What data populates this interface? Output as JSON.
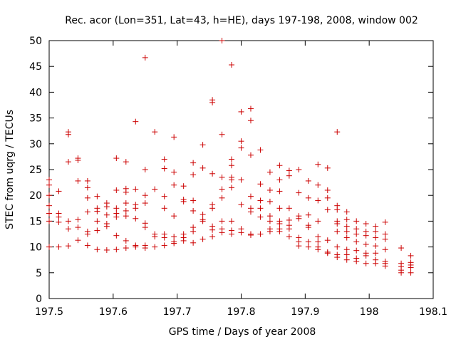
{
  "chart_data": {
    "type": "scatter",
    "title": "Rec. acor (Lon=351, Lat=43, h=HE), days 197-198, 2008, window 002",
    "xlabel": "GPS time / Days of year 2008",
    "ylabel": "STEC from uqrg / TECUs",
    "xlim": [
      197.5,
      198.1
    ],
    "ylim": [
      0,
      50
    ],
    "xticks": [
      197.5,
      197.6,
      197.7,
      197.8,
      197.9,
      198,
      198.1
    ],
    "xtick_labels": [
      "197.5",
      "197.6",
      "197.7",
      "197.8",
      "197.9",
      "198",
      "198.1"
    ],
    "yticks": [
      0,
      5,
      10,
      15,
      20,
      25,
      30,
      35,
      40,
      45,
      50
    ],
    "ytick_labels": [
      "0",
      "5",
      "10",
      "15",
      "20",
      "25",
      "30",
      "35",
      "40",
      "45",
      "50"
    ],
    "grid": false,
    "marker": "+",
    "series": [
      {
        "color": "#cc0000",
        "points": [
          [
            197.5,
            23.0
          ],
          [
            197.5,
            22.0
          ],
          [
            197.5,
            20.0
          ],
          [
            197.5,
            18.0
          ],
          [
            197.5,
            16.5
          ],
          [
            197.5,
            15.0
          ],
          [
            197.5,
            10.0
          ],
          [
            197.515,
            20.8
          ],
          [
            197.515,
            16.5
          ],
          [
            197.515,
            15.8
          ],
          [
            197.515,
            14.8
          ],
          [
            197.515,
            10.0
          ],
          [
            197.53,
            32.3
          ],
          [
            197.53,
            31.8
          ],
          [
            197.53,
            26.5
          ],
          [
            197.53,
            15.0
          ],
          [
            197.53,
            13.5
          ],
          [
            197.53,
            10.2
          ],
          [
            197.545,
            27.2
          ],
          [
            197.545,
            26.8
          ],
          [
            197.545,
            22.8
          ],
          [
            197.545,
            15.3
          ],
          [
            197.545,
            13.8
          ],
          [
            197.545,
            11.3
          ],
          [
            197.56,
            22.8
          ],
          [
            197.56,
            21.5
          ],
          [
            197.56,
            19.5
          ],
          [
            197.56,
            16.8
          ],
          [
            197.56,
            13.0
          ],
          [
            197.56,
            12.5
          ],
          [
            197.56,
            10.3
          ],
          [
            197.575,
            19.8
          ],
          [
            197.575,
            17.5
          ],
          [
            197.575,
            16.9
          ],
          [
            197.575,
            15.0
          ],
          [
            197.575,
            13.2
          ],
          [
            197.575,
            9.5
          ],
          [
            197.59,
            18.5
          ],
          [
            197.59,
            17.8
          ],
          [
            197.59,
            16.2
          ],
          [
            197.59,
            14.5
          ],
          [
            197.59,
            14.0
          ],
          [
            197.59,
            9.4
          ],
          [
            197.605,
            27.2
          ],
          [
            197.605,
            21.0
          ],
          [
            197.605,
            17.5
          ],
          [
            197.605,
            16.5
          ],
          [
            197.605,
            15.8
          ],
          [
            197.605,
            12.2
          ],
          [
            197.605,
            9.5
          ],
          [
            197.62,
            26.5
          ],
          [
            197.62,
            21.3
          ],
          [
            197.62,
            20.6
          ],
          [
            197.62,
            18.5
          ],
          [
            197.62,
            17.0
          ],
          [
            197.62,
            16.0
          ],
          [
            197.62,
            11.2
          ],
          [
            197.62,
            9.8
          ],
          [
            197.635,
            34.3
          ],
          [
            197.635,
            21.2
          ],
          [
            197.635,
            18.2
          ],
          [
            197.635,
            17.5
          ],
          [
            197.635,
            15.5
          ],
          [
            197.635,
            10.3
          ],
          [
            197.635,
            10.0
          ],
          [
            197.65,
            46.7
          ],
          [
            197.65,
            25.0
          ],
          [
            197.65,
            20.0
          ],
          [
            197.65,
            18.5
          ],
          [
            197.65,
            14.6
          ],
          [
            197.65,
            13.8
          ],
          [
            197.65,
            10.3
          ],
          [
            197.65,
            9.8
          ],
          [
            197.665,
            32.3
          ],
          [
            197.665,
            21.2
          ],
          [
            197.665,
            12.5
          ],
          [
            197.665,
            12.0
          ],
          [
            197.665,
            10.0
          ],
          [
            197.68,
            27.0
          ],
          [
            197.68,
            25.2
          ],
          [
            197.68,
            19.8
          ],
          [
            197.68,
            17.5
          ],
          [
            197.68,
            12.5
          ],
          [
            197.68,
            11.8
          ],
          [
            197.68,
            10.3
          ],
          [
            197.695,
            31.3
          ],
          [
            197.695,
            24.5
          ],
          [
            197.695,
            22.0
          ],
          [
            197.695,
            16.0
          ],
          [
            197.695,
            12.0
          ],
          [
            197.695,
            11.0
          ],
          [
            197.695,
            10.7
          ],
          [
            197.71,
            21.8
          ],
          [
            197.71,
            19.2
          ],
          [
            197.71,
            18.8
          ],
          [
            197.71,
            12.5
          ],
          [
            197.71,
            11.8
          ],
          [
            197.71,
            11.2
          ],
          [
            197.725,
            26.3
          ],
          [
            197.725,
            24.0
          ],
          [
            197.725,
            19.0
          ],
          [
            197.725,
            17.0
          ],
          [
            197.725,
            13.8
          ],
          [
            197.725,
            13.0
          ],
          [
            197.725,
            10.8
          ],
          [
            197.74,
            29.8
          ],
          [
            197.74,
            25.3
          ],
          [
            197.74,
            16.3
          ],
          [
            197.74,
            15.3
          ],
          [
            197.74,
            15.0
          ],
          [
            197.74,
            11.5
          ],
          [
            197.755,
            38.5
          ],
          [
            197.755,
            38.0
          ],
          [
            197.755,
            24.2
          ],
          [
            197.755,
            18.2
          ],
          [
            197.755,
            17.5
          ],
          [
            197.755,
            14.0
          ],
          [
            197.755,
            13.3
          ],
          [
            197.755,
            12.0
          ],
          [
            197.77,
            50.0
          ],
          [
            197.77,
            31.8
          ],
          [
            197.77,
            23.5
          ],
          [
            197.77,
            21.2
          ],
          [
            197.77,
            19.5
          ],
          [
            197.77,
            15.0
          ],
          [
            197.77,
            13.5
          ],
          [
            197.77,
            12.8
          ],
          [
            197.785,
            45.3
          ],
          [
            197.785,
            27.0
          ],
          [
            197.785,
            25.8
          ],
          [
            197.785,
            23.5
          ],
          [
            197.785,
            23.0
          ],
          [
            197.785,
            21.5
          ],
          [
            197.785,
            15.0
          ],
          [
            197.785,
            13.2
          ],
          [
            197.785,
            12.5
          ],
          [
            197.8,
            36.2
          ],
          [
            197.8,
            30.5
          ],
          [
            197.8,
            29.2
          ],
          [
            197.8,
            23.0
          ],
          [
            197.8,
            18.2
          ],
          [
            197.8,
            13.5
          ],
          [
            197.8,
            12.8
          ],
          [
            197.815,
            36.8
          ],
          [
            197.815,
            34.5
          ],
          [
            197.815,
            27.8
          ],
          [
            197.815,
            19.8
          ],
          [
            197.815,
            17.5
          ],
          [
            197.815,
            16.8
          ],
          [
            197.815,
            12.5
          ],
          [
            197.815,
            12.3
          ],
          [
            197.83,
            28.8
          ],
          [
            197.83,
            22.2
          ],
          [
            197.83,
            19.0
          ],
          [
            197.83,
            17.5
          ],
          [
            197.83,
            15.8
          ],
          [
            197.83,
            12.5
          ],
          [
            197.845,
            24.5
          ],
          [
            197.845,
            21.0
          ],
          [
            197.845,
            18.8
          ],
          [
            197.845,
            16.0
          ],
          [
            197.845,
            15.0
          ],
          [
            197.845,
            13.5
          ],
          [
            197.845,
            13.0
          ],
          [
            197.86,
            25.8
          ],
          [
            197.86,
            23.0
          ],
          [
            197.86,
            20.8
          ],
          [
            197.86,
            17.5
          ],
          [
            197.86,
            15.0
          ],
          [
            197.86,
            14.5
          ],
          [
            197.86,
            13.5
          ],
          [
            197.86,
            13.0
          ],
          [
            197.875,
            24.8
          ],
          [
            197.875,
            23.8
          ],
          [
            197.875,
            17.5
          ],
          [
            197.875,
            15.2
          ],
          [
            197.875,
            14.2
          ],
          [
            197.875,
            13.5
          ],
          [
            197.875,
            12.0
          ],
          [
            197.89,
            25.0
          ],
          [
            197.89,
            20.5
          ],
          [
            197.89,
            16.0
          ],
          [
            197.89,
            15.5
          ],
          [
            197.89,
            11.8
          ],
          [
            197.89,
            11.0
          ],
          [
            197.89,
            10.2
          ],
          [
            197.905,
            22.8
          ],
          [
            197.905,
            19.5
          ],
          [
            197.905,
            16.2
          ],
          [
            197.905,
            14.2
          ],
          [
            197.905,
            13.8
          ],
          [
            197.905,
            11.0
          ],
          [
            197.905,
            10.0
          ],
          [
            197.92,
            26.0
          ],
          [
            197.92,
            22.0
          ],
          [
            197.92,
            19.0
          ],
          [
            197.92,
            15.0
          ],
          [
            197.92,
            12.0
          ],
          [
            197.92,
            11.0
          ],
          [
            197.92,
            10.0
          ],
          [
            197.92,
            9.5
          ],
          [
            197.935,
            25.3
          ],
          [
            197.935,
            21.0
          ],
          [
            197.935,
            19.5
          ],
          [
            197.935,
            17.2
          ],
          [
            197.935,
            11.3
          ],
          [
            197.935,
            9.0
          ],
          [
            197.935,
            8.8
          ],
          [
            197.95,
            32.3
          ],
          [
            197.95,
            18.0
          ],
          [
            197.95,
            17.2
          ],
          [
            197.95,
            15.0
          ],
          [
            197.95,
            14.5
          ],
          [
            197.95,
            13.0
          ],
          [
            197.95,
            10.0
          ],
          [
            197.95,
            8.5
          ],
          [
            197.95,
            8.0
          ],
          [
            197.965,
            16.8
          ],
          [
            197.965,
            15.3
          ],
          [
            197.965,
            14.0
          ],
          [
            197.965,
            13.0
          ],
          [
            197.965,
            11.8
          ],
          [
            197.965,
            9.5
          ],
          [
            197.965,
            8.5
          ],
          [
            197.965,
            7.5
          ],
          [
            197.98,
            15.0
          ],
          [
            197.98,
            13.5
          ],
          [
            197.98,
            12.5
          ],
          [
            197.98,
            11.0
          ],
          [
            197.98,
            9.3
          ],
          [
            197.98,
            7.8
          ],
          [
            197.98,
            7.2
          ],
          [
            197.995,
            14.5
          ],
          [
            197.995,
            13.0
          ],
          [
            197.995,
            12.2
          ],
          [
            197.995,
            10.5
          ],
          [
            197.995,
            8.8
          ],
          [
            197.995,
            8.3
          ],
          [
            197.995,
            6.8
          ],
          [
            198.01,
            14.0
          ],
          [
            198.01,
            13.0
          ],
          [
            198.01,
            11.8
          ],
          [
            198.01,
            10.2
          ],
          [
            198.01,
            8.8
          ],
          [
            198.01,
            7.5
          ],
          [
            198.01,
            6.8
          ],
          [
            198.025,
            14.8
          ],
          [
            198.025,
            12.5
          ],
          [
            198.025,
            11.5
          ],
          [
            198.025,
            9.5
          ],
          [
            198.025,
            7.2
          ],
          [
            198.025,
            6.8
          ],
          [
            198.025,
            6.3
          ],
          [
            198.05,
            9.8
          ],
          [
            198.05,
            6.8
          ],
          [
            198.05,
            6.2
          ],
          [
            198.05,
            5.5
          ],
          [
            198.05,
            5.0
          ],
          [
            198.065,
            8.3
          ],
          [
            198.065,
            7.0
          ],
          [
            198.065,
            6.5
          ],
          [
            198.065,
            6.0
          ],
          [
            198.065,
            5.0
          ]
        ]
      }
    ]
  }
}
